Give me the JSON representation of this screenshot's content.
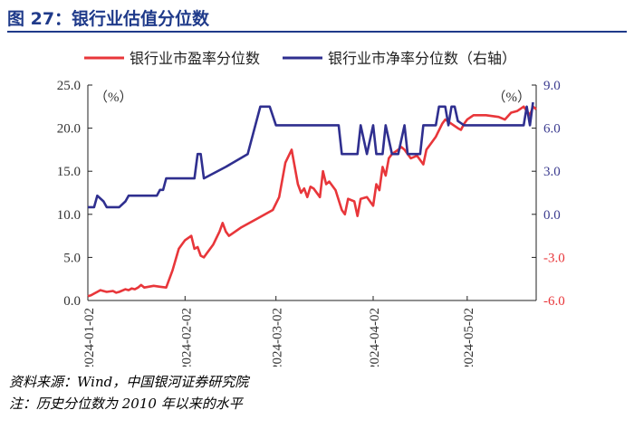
{
  "title": "图 27：银行业估值分位数",
  "source": "资料来源：Wind，中国银河证券研究院",
  "note": "注：历史分位数为 2010 年以来的水平",
  "chart_data": {
    "type": "line",
    "left_unit": "（%）",
    "right_unit": "（%）",
    "x_ticks": [
      "2024-01-02",
      "2024-02-02",
      "2024-03-02",
      "2024-04-02",
      "2024-05-02"
    ],
    "y_left": {
      "min": 0,
      "max": 25,
      "ticks": [
        "0.0",
        "5.0",
        "10.0",
        "15.0",
        "20.0",
        "25.0"
      ],
      "color": "#333333"
    },
    "y_right": {
      "min": -6,
      "max": 9,
      "ticks": [
        "-6.0",
        "-3.0",
        "0.0",
        "3.0",
        "6.0",
        "9.0"
      ],
      "colors": [
        "#e8363a",
        "#e8363a",
        "#3b3b8f",
        "#3b3b8f",
        "#3b3b8f",
        "#3b3b8f"
      ]
    },
    "series": [
      {
        "name": "银行业市盈率分位数",
        "axis": "left",
        "color": "#e8363a",
        "points": [
          [
            "2024-01-02",
            0.5
          ],
          [
            "2024-01-03",
            0.6
          ],
          [
            "2024-01-04",
            0.8
          ],
          [
            "2024-01-05",
            1.0
          ],
          [
            "2024-01-06",
            1.2
          ],
          [
            "2024-01-08",
            1.0
          ],
          [
            "2024-01-10",
            1.1
          ],
          [
            "2024-01-11",
            0.9
          ],
          [
            "2024-01-12",
            1.0
          ],
          [
            "2024-01-14",
            1.3
          ],
          [
            "2024-01-15",
            1.2
          ],
          [
            "2024-01-16",
            1.4
          ],
          [
            "2024-01-17",
            1.3
          ],
          [
            "2024-01-18",
            1.5
          ],
          [
            "2024-01-19",
            1.8
          ],
          [
            "2024-01-20",
            1.5
          ],
          [
            "2024-01-23",
            1.7
          ],
          [
            "2024-01-25",
            1.6
          ],
          [
            "2024-01-27",
            1.5
          ],
          [
            "2024-01-29",
            3.5
          ],
          [
            "2024-01-31",
            6.0
          ],
          [
            "2024-02-01",
            6.5
          ],
          [
            "2024-02-02",
            7.0
          ],
          [
            "2024-02-04",
            7.5
          ],
          [
            "2024-02-05",
            6.0
          ],
          [
            "2024-02-06",
            6.2
          ],
          [
            "2024-02-07",
            5.2
          ],
          [
            "2024-02-08",
            5.0
          ],
          [
            "2024-02-09",
            5.5
          ],
          [
            "2024-02-11",
            6.5
          ],
          [
            "2024-02-13",
            8.0
          ],
          [
            "2024-02-14",
            9.0
          ],
          [
            "2024-02-15",
            8.0
          ],
          [
            "2024-02-16",
            7.5
          ],
          [
            "2024-02-20",
            8.5
          ],
          [
            "2024-02-25",
            9.5
          ],
          [
            "2024-03-01",
            10.5
          ],
          [
            "2024-03-03",
            12.0
          ],
          [
            "2024-03-05",
            16.0
          ],
          [
            "2024-03-07",
            17.5
          ],
          [
            "2024-03-09",
            13.5
          ],
          [
            "2024-03-10",
            12.5
          ],
          [
            "2024-03-11",
            13.0
          ],
          [
            "2024-03-12",
            12.0
          ],
          [
            "2024-03-13",
            13.2
          ],
          [
            "2024-03-14",
            13.0
          ],
          [
            "2024-03-16",
            12.0
          ],
          [
            "2024-03-17",
            15.0
          ],
          [
            "2024-03-18",
            13.5
          ],
          [
            "2024-03-19",
            13.8
          ],
          [
            "2024-03-21",
            12.8
          ],
          [
            "2024-03-23",
            10.5
          ],
          [
            "2024-03-24",
            10.0
          ],
          [
            "2024-03-25",
            11.8
          ],
          [
            "2024-03-27",
            11.5
          ],
          [
            "2024-03-28",
            9.8
          ],
          [
            "2024-03-29",
            11.8
          ],
          [
            "2024-03-31",
            12.0
          ],
          [
            "2024-04-01",
            11.5
          ],
          [
            "2024-04-02",
            11.0
          ],
          [
            "2024-04-03",
            13.5
          ],
          [
            "2024-04-04",
            12.8
          ],
          [
            "2024-04-05",
            15.5
          ],
          [
            "2024-04-06",
            14.5
          ],
          [
            "2024-04-07",
            16.5
          ],
          [
            "2024-04-08",
            17.0
          ],
          [
            "2024-04-10",
            17.5
          ],
          [
            "2024-04-11",
            17.8
          ],
          [
            "2024-04-12",
            17.5
          ],
          [
            "2024-04-14",
            16.5
          ],
          [
            "2024-04-16",
            16.8
          ],
          [
            "2024-04-18",
            15.8
          ],
          [
            "2024-04-19",
            17.5
          ],
          [
            "2024-04-20",
            18.0
          ],
          [
            "2024-04-22",
            19.0
          ],
          [
            "2024-04-24",
            20.5
          ],
          [
            "2024-04-25",
            21.0
          ],
          [
            "2024-04-27",
            20.5
          ],
          [
            "2024-04-29",
            20.0
          ],
          [
            "2024-04-30",
            19.8
          ],
          [
            "2024-05-01",
            20.5
          ],
          [
            "2024-05-02",
            21.0
          ],
          [
            "2024-05-04",
            21.5
          ],
          [
            "2024-05-08",
            21.5
          ],
          [
            "2024-05-12",
            21.3
          ],
          [
            "2024-05-14",
            21.0
          ],
          [
            "2024-05-16",
            21.8
          ],
          [
            "2024-05-18",
            22.0
          ],
          [
            "2024-05-20",
            22.5
          ],
          [
            "2024-05-22",
            21.5
          ],
          [
            "2024-05-23",
            22.5
          ],
          [
            "2024-05-24",
            22.2
          ]
        ]
      },
      {
        "name": "银行业市净率分位数（右轴）",
        "axis": "right",
        "color": "#2f2f8f",
        "points": [
          [
            "2024-01-02",
            0.5
          ],
          [
            "2024-01-04",
            0.5
          ],
          [
            "2024-01-05",
            1.3
          ],
          [
            "2024-01-07",
            0.9
          ],
          [
            "2024-01-08",
            0.5
          ],
          [
            "2024-01-10",
            0.5
          ],
          [
            "2024-01-12",
            0.5
          ],
          [
            "2024-01-14",
            0.9
          ],
          [
            "2024-01-15",
            1.3
          ],
          [
            "2024-01-20",
            1.3
          ],
          [
            "2024-01-24",
            1.3
          ],
          [
            "2024-01-25",
            1.7
          ],
          [
            "2024-01-26",
            1.7
          ],
          [
            "2024-01-27",
            2.5
          ],
          [
            "2024-02-02",
            2.5
          ],
          [
            "2024-02-05",
            2.5
          ],
          [
            "2024-02-06",
            4.2
          ],
          [
            "2024-02-07",
            4.2
          ],
          [
            "2024-02-08",
            2.5
          ],
          [
            "2024-02-15",
            3.3
          ],
          [
            "2024-02-22",
            4.2
          ],
          [
            "2024-02-26",
            7.5
          ],
          [
            "2024-02-29",
            7.5
          ],
          [
            "2024-03-02",
            6.2
          ],
          [
            "2024-03-22",
            6.2
          ],
          [
            "2024-03-23",
            4.2
          ],
          [
            "2024-03-28",
            4.2
          ],
          [
            "2024-03-29",
            6.2
          ],
          [
            "2024-03-31",
            4.2
          ],
          [
            "2024-04-02",
            6.2
          ],
          [
            "2024-04-03",
            4.2
          ],
          [
            "2024-04-05",
            4.2
          ],
          [
            "2024-04-06",
            6.2
          ],
          [
            "2024-04-08",
            4.2
          ],
          [
            "2024-04-10",
            4.2
          ],
          [
            "2024-04-12",
            6.2
          ],
          [
            "2024-04-13",
            4.2
          ],
          [
            "2024-04-17",
            4.2
          ],
          [
            "2024-04-18",
            6.2
          ],
          [
            "2024-04-22",
            6.2
          ],
          [
            "2024-04-23",
            7.5
          ],
          [
            "2024-04-25",
            7.5
          ],
          [
            "2024-04-26",
            6.2
          ],
          [
            "2024-04-27",
            7.5
          ],
          [
            "2024-04-28",
            7.5
          ],
          [
            "2024-04-29",
            6.5
          ],
          [
            "2024-05-01",
            6.2
          ],
          [
            "2024-05-20",
            6.2
          ],
          [
            "2024-05-21",
            7.5
          ],
          [
            "2024-05-22",
            6.2
          ],
          [
            "2024-05-23",
            7.8
          ]
        ]
      }
    ],
    "legend_position": "top"
  }
}
